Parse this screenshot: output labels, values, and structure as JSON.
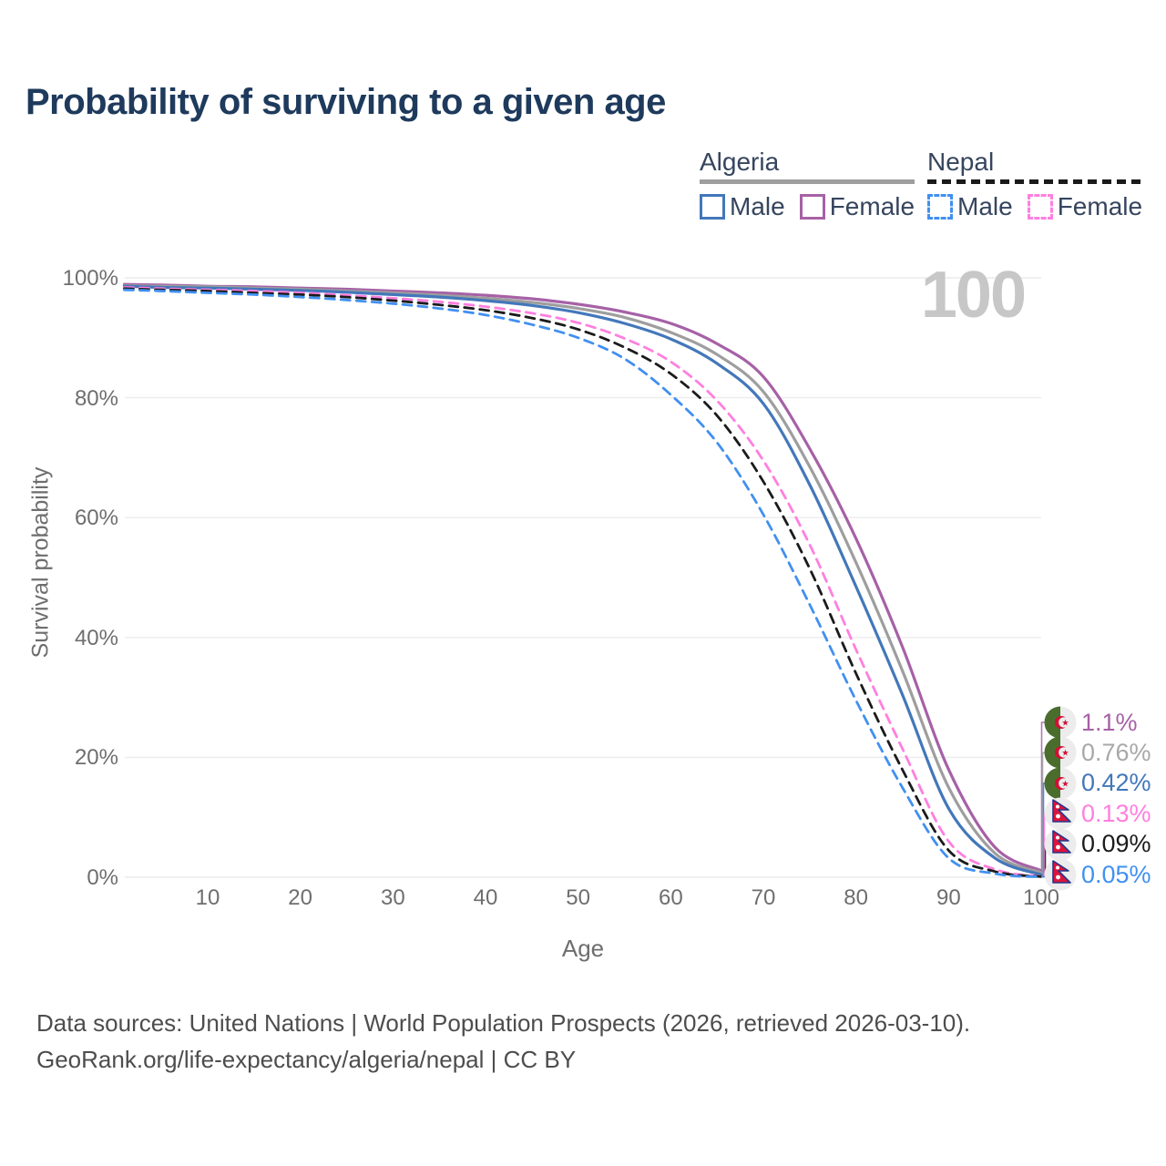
{
  "title": "Probability of surviving to a given age",
  "watermark": "100",
  "legend": {
    "position": "top-right",
    "groups": [
      {
        "name": "Algeria",
        "line_style": "solid",
        "underline_color": "#9e9e9e",
        "items": [
          {
            "label": "Male",
            "color": "#4377ba"
          },
          {
            "label": "Female",
            "color": "#a661a6"
          }
        ]
      },
      {
        "name": "Nepal",
        "line_style": "dashed",
        "underline_color": "#1a1a1a",
        "items": [
          {
            "label": "Male",
            "color": "#4190f0"
          },
          {
            "label": "Female",
            "color": "#ff7fdf"
          }
        ]
      }
    ]
  },
  "chart_data": {
    "type": "line",
    "title": "Probability of surviving to a given age",
    "xlabel": "Age",
    "ylabel": "Survival probability",
    "xlim": [
      1,
      100
    ],
    "ylim": [
      0,
      100
    ],
    "grid": "horizontal",
    "x_ticks": [
      10,
      20,
      30,
      40,
      50,
      60,
      70,
      80,
      90,
      100
    ],
    "y_ticks": [
      0,
      20,
      40,
      60,
      80,
      100
    ],
    "y_tick_labels": [
      "0%",
      "20%",
      "40%",
      "60%",
      "80%",
      "100%"
    ],
    "ages": [
      1,
      5,
      10,
      15,
      20,
      25,
      30,
      35,
      40,
      45,
      50,
      55,
      60,
      65,
      70,
      75,
      80,
      85,
      90,
      95,
      100
    ],
    "series": [
      {
        "name": "Algeria Female",
        "country": "Algeria",
        "sex": "Female",
        "color": "#a661a6",
        "dash": false,
        "icon": "algeria-flag-icon",
        "end_label": "1.1%",
        "values": [
          98.9,
          98.8,
          98.6,
          98.5,
          98.3,
          98.1,
          97.8,
          97.5,
          97.1,
          96.5,
          95.6,
          94.3,
          92.4,
          89.0,
          83.5,
          71.5,
          56.5,
          38.5,
          18.0,
          5.0,
          1.1
        ]
      },
      {
        "name": "Algeria Both sexes",
        "country": "Algeria",
        "sex": "Both",
        "color": "#9e9e9e",
        "dash": false,
        "icon": "algeria-flag-icon",
        "end_label": "0.76%",
        "values": [
          98.7,
          98.6,
          98.5,
          98.3,
          98.1,
          97.8,
          97.5,
          97.1,
          96.6,
          95.9,
          94.9,
          93.4,
          90.9,
          87.2,
          81.0,
          68.5,
          52.5,
          34.5,
          15.0,
          4.0,
          0.76
        ]
      },
      {
        "name": "Algeria Male",
        "country": "Algeria",
        "sex": "Male",
        "color": "#4377ba",
        "dash": false,
        "icon": "algeria-flag-icon",
        "end_label": "0.42%",
        "values": [
          98.6,
          98.4,
          98.3,
          98.1,
          97.9,
          97.6,
          97.2,
          96.8,
          96.2,
          95.4,
          94.2,
          92.4,
          89.8,
          85.7,
          79.0,
          65.5,
          48.5,
          30.5,
          11.5,
          3.2,
          0.42
        ]
      },
      {
        "name": "Nepal Female",
        "country": "Nepal",
        "sex": "Female",
        "color": "#ff7fdf",
        "dash": true,
        "icon": "nepal-flag-icon",
        "end_label": "0.13%",
        "values": [
          98.4,
          98.2,
          98.0,
          97.8,
          97.5,
          97.1,
          96.6,
          96.0,
          95.2,
          94.1,
          92.5,
          89.9,
          86.0,
          79.5,
          69.5,
          55.5,
          38.0,
          21.5,
          6.0,
          1.3,
          0.13
        ]
      },
      {
        "name": "Nepal Both sexes",
        "country": "Nepal",
        "sex": "Both",
        "color": "#1b1b1b",
        "dash": true,
        "icon": "nepal-flag-icon",
        "end_label": "0.09%",
        "values": [
          98.2,
          98.0,
          97.8,
          97.5,
          97.2,
          96.8,
          96.2,
          95.5,
          94.6,
          93.3,
          91.4,
          88.4,
          84.0,
          77.0,
          66.0,
          51.5,
          34.0,
          18.0,
          4.5,
          0.95,
          0.09
        ]
      },
      {
        "name": "Nepal Male",
        "country": "Nepal",
        "sex": "Male",
        "color": "#4190f0",
        "dash": true,
        "icon": "nepal-flag-icon",
        "end_label": "0.05%",
        "values": [
          98.0,
          97.8,
          97.5,
          97.2,
          96.8,
          96.3,
          95.7,
          94.9,
          93.8,
          92.2,
          90.0,
          86.5,
          80.5,
          72.5,
          60.5,
          45.5,
          29.5,
          15.0,
          3.2,
          0.6,
          0.05
        ]
      }
    ]
  },
  "footer": {
    "line1": "Data sources: United Nations | World Population Prospects (2026, retrieved 2026-03-10).",
    "line2": "GeoRank.org/life-expectancy/algeria/nepal | CC BY"
  }
}
